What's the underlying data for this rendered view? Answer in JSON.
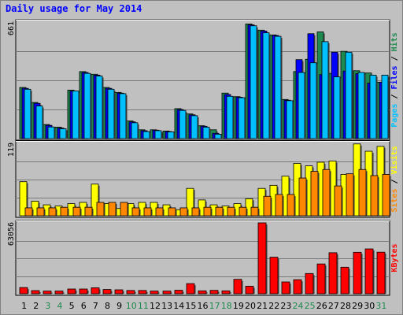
{
  "chart_data": {
    "type": "bar",
    "title": "Daily usage for May 2014",
    "x": [
      "1",
      "2",
      "3",
      "4",
      "5",
      "6",
      "7",
      "8",
      "9",
      "10",
      "11",
      "12",
      "13",
      "14",
      "15",
      "16",
      "17",
      "18",
      "19",
      "20",
      "21",
      "22",
      "23",
      "24",
      "25",
      "26",
      "27",
      "28",
      "29",
      "30",
      "31"
    ],
    "weekend_days": [
      "3",
      "4",
      "10",
      "11",
      "17",
      "18",
      "24",
      "25",
      "31"
    ],
    "colors": {
      "weekday_label": "#000000",
      "weekend_label": "#1e8a50",
      "pages": "#00c0ff",
      "files": "#0000ff",
      "hits": "#1e8a50",
      "visits": "#ffff00",
      "sites": "#ff8800",
      "kbytes": "#ff0000",
      "panel_bg": "#c0c0c0",
      "title": "#0000ff"
    },
    "panels": [
      {
        "max_label": "661",
        "ylim": [
          0,
          661
        ],
        "axis_label_parts": [
          {
            "text": "Pages",
            "color": "#00c0ff"
          },
          {
            "text": " / ",
            "color": "#000000"
          },
          {
            "text": "Files",
            "color": "#0000ff"
          },
          {
            "text": " / ",
            "color": "#000000"
          },
          {
            "text": "Hits",
            "color": "#1e8a50"
          }
        ],
        "series": [
          {
            "name": "Hits",
            "color": "#1e8a50",
            "values": [
              290,
              205,
              80,
              65,
              275,
              380,
              365,
              290,
              262,
              100,
              50,
              50,
              43,
              170,
              140,
              73,
              50,
              258,
              238,
              650,
              615,
              588,
              222,
              380,
              450,
              605,
              370,
              495,
              385,
              372,
              320
            ]
          },
          {
            "name": "Files",
            "color": "#0000ff",
            "values": [
              285,
              200,
              75,
              60,
              270,
              375,
              360,
              285,
              258,
              95,
              45,
              48,
              40,
              165,
              135,
              70,
              30,
              250,
              235,
              645,
              610,
              585,
              218,
              448,
              595,
              363,
              490,
              383,
              368,
              315,
              320
            ]
          },
          {
            "name": "Pages",
            "color": "#00c0ff",
            "values": [
              280,
              185,
              66,
              56,
              270,
              370,
              355,
              280,
              255,
              90,
              40,
              45,
              38,
              160,
              130,
              65,
              25,
              240,
              232,
              640,
              600,
              580,
              215,
              375,
              430,
              550,
              350,
              490,
              375,
              360,
              360
            ]
          }
        ]
      },
      {
        "max_label": "119",
        "ylim": [
          0,
          119
        ],
        "axis_label_parts": [
          {
            "text": "Sites",
            "color": "#ff8800"
          },
          {
            "text": " / ",
            "color": "#000000"
          },
          {
            "text": "Visits",
            "color": "#ffff00"
          }
        ],
        "series": [
          {
            "name": "Visits",
            "color": "#ffff00",
            "values": [
              56,
              24,
              18,
              16,
              20,
              22,
              52,
              20,
              12,
              20,
              22,
              22,
              18,
              10,
              45,
              26,
              18,
              16,
              20,
              28,
              45,
              50,
              65,
              86,
              82,
              88,
              90,
              68,
              118,
              106,
              114
            ]
          },
          {
            "name": "Sites",
            "color": "#ff8800",
            "values": [
              13,
              13,
              13,
              14,
              14,
              14,
              22,
              22,
              22,
              13,
              13,
              13,
              13,
              13,
              13,
              14,
              14,
              14,
              14,
              14,
              32,
              35,
              35,
              62,
              73,
              76,
              49,
              69,
              76,
              66,
              68
            ]
          }
        ]
      },
      {
        "max_label": "63056",
        "ylim": [
          0,
          63056
        ],
        "axis_label_parts": [
          {
            "text": "KBytes",
            "color": "#ff0000"
          }
        ],
        "series": [
          {
            "name": "KBytes",
            "color": "#ff0000",
            "values": [
              5500,
              2800,
              2400,
              2400,
              4200,
              4200,
              5300,
              3800,
              3500,
              2900,
              2900,
              2400,
              2400,
              3100,
              9000,
              2600,
              3000,
              2600,
              12800,
              6700,
              63056,
              32500,
              10500,
              12500,
              18000,
              26500,
              36500,
              23600,
              36900,
              39900,
              37000
            ]
          }
        ]
      }
    ]
  }
}
